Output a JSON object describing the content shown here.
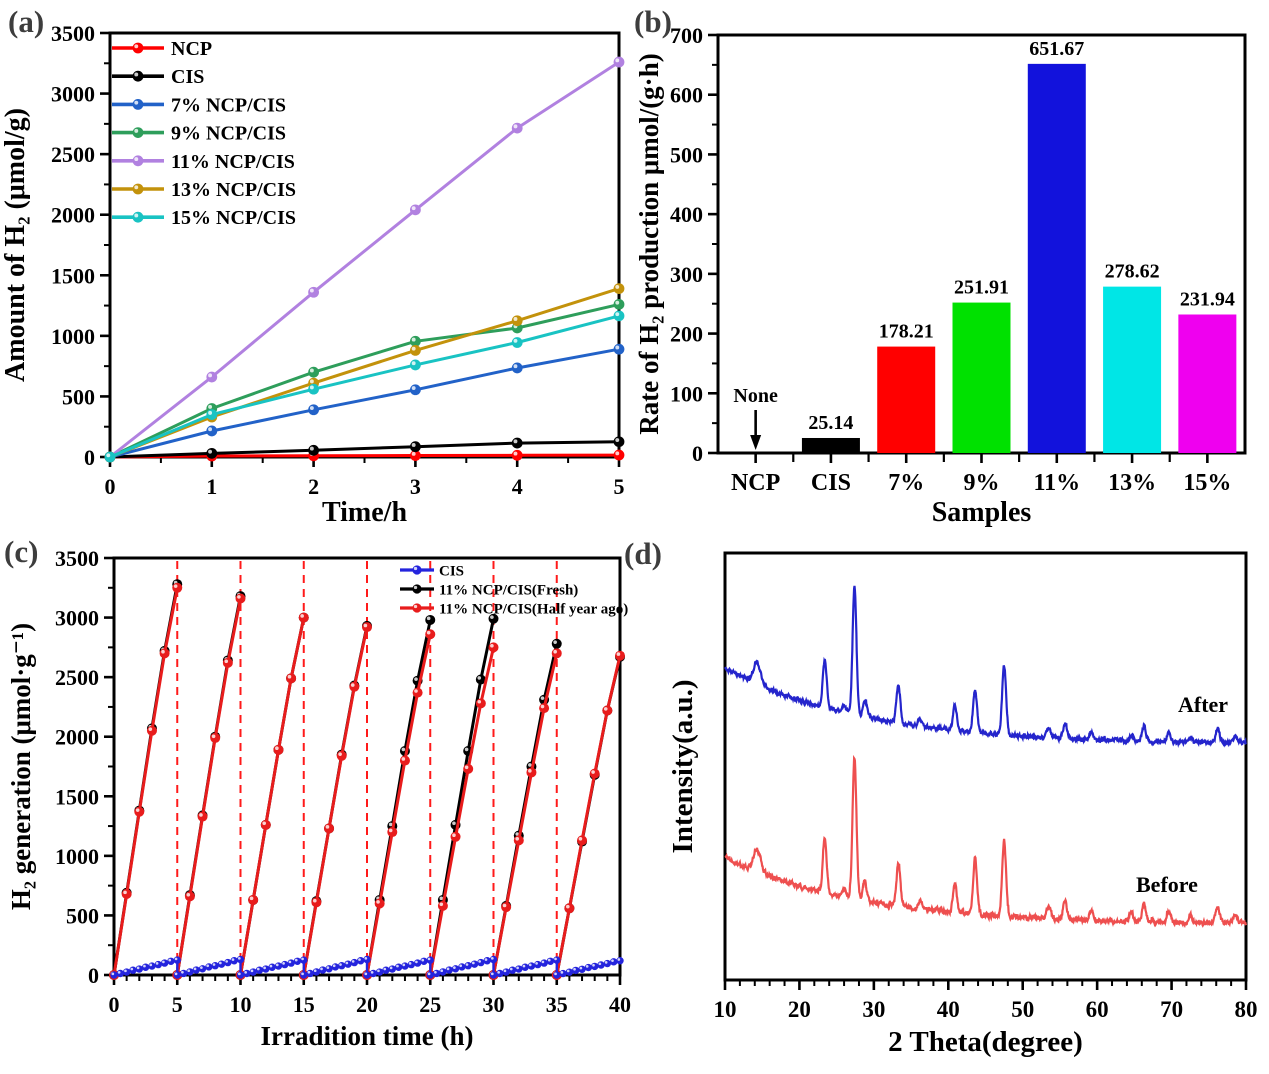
{
  "panels": {
    "a": "(a)",
    "b": "(b)",
    "c": "(c)",
    "d": "(d)"
  },
  "chart_data": [
    {
      "panel": "a",
      "type": "line",
      "xlabel": "Time/h",
      "ylabel": "Amount of H₂ (μmol/g)",
      "xlim": [
        0,
        5
      ],
      "ylim": [
        0,
        3500
      ],
      "xticks": [
        0,
        1,
        2,
        3,
        4,
        5
      ],
      "yticks": [
        0,
        500,
        1000,
        1500,
        2000,
        2500,
        3000,
        3500
      ],
      "x_minor": 0.5,
      "y_minor": 250,
      "grid": false,
      "legend_position": "top-left",
      "series": [
        {
          "name": "NCP",
          "color": "#ff0000",
          "x": [
            0,
            1,
            2,
            3,
            4,
            5
          ],
          "y": [
            0,
            8,
            10,
            12,
            14,
            16
          ]
        },
        {
          "name": "CIS",
          "color": "#000000",
          "x": [
            0,
            1,
            2,
            3,
            4,
            5
          ],
          "y": [
            0,
            30,
            55,
            85,
            115,
            126
          ]
        },
        {
          "name": "7% NCP/CIS",
          "color": "#2262c8",
          "x": [
            0,
            1,
            2,
            3,
            4,
            5
          ],
          "y": [
            0,
            215,
            390,
            555,
            735,
            890
          ]
        },
        {
          "name": "9% NCP/CIS",
          "color": "#2e9e5b",
          "x": [
            0,
            1,
            2,
            3,
            4,
            5
          ],
          "y": [
            0,
            400,
            700,
            955,
            1065,
            1260
          ]
        },
        {
          "name": "11% NCP/CIS",
          "color": "#b181e0",
          "x": [
            0,
            1,
            2,
            3,
            4,
            5
          ],
          "y": [
            0,
            660,
            1360,
            2040,
            2715,
            3260
          ]
        },
        {
          "name": "13% NCP/CIS",
          "color": "#c3920b",
          "x": [
            0,
            1,
            2,
            3,
            4,
            5
          ],
          "y": [
            0,
            330,
            610,
            880,
            1125,
            1390
          ]
        },
        {
          "name": "15% NCP/CIS",
          "color": "#19c3c3",
          "x": [
            0,
            1,
            2,
            3,
            4,
            5
          ],
          "y": [
            0,
            350,
            560,
            760,
            945,
            1165
          ]
        }
      ]
    },
    {
      "panel": "b",
      "type": "bar",
      "xlabel": "Samples",
      "ylabel": "Rate of H₂ production μmol/(g·h)",
      "ylim": [
        0,
        700
      ],
      "yticks": [
        0,
        100,
        200,
        300,
        400,
        500,
        600,
        700
      ],
      "y_minor": 50,
      "categories": [
        "NCP",
        "CIS",
        "7%",
        "9%",
        "11%",
        "13%",
        "15%"
      ],
      "values": [
        0,
        25.14,
        178.21,
        251.91,
        651.67,
        278.62,
        231.94
      ],
      "bar_labels": [
        "",
        "25.14",
        "178.21",
        "251.91",
        "651.67",
        "278.62",
        "231.94"
      ],
      "colors": [
        "#000000",
        "#000000",
        "#ff0000",
        "#00e100",
        "#1212dc",
        "#00e6e6",
        "#ef00ef"
      ],
      "annotation": {
        "text": "None",
        "category": "NCP"
      }
    },
    {
      "panel": "c",
      "type": "line-cycles",
      "xlabel": "Irradition time (h)",
      "ylabel": "H₂ generation (μmol·g⁻¹)",
      "xlim": [
        0,
        40
      ],
      "ylim": [
        0,
        3500
      ],
      "xticks": [
        0,
        5,
        10,
        15,
        20,
        25,
        30,
        35,
        40
      ],
      "yticks": [
        0,
        500,
        1000,
        1500,
        2000,
        2500,
        3000,
        3500
      ],
      "x_minor": 1,
      "y_minor": 250,
      "cycle_length": 5,
      "dashed_vlines": {
        "x": [
          5,
          10,
          15,
          20,
          25,
          30,
          35
        ],
        "color": "#ff1a1a"
      },
      "legend_position": "top-middle",
      "series": [
        {
          "name": "CIS",
          "color": "#2424dd",
          "style": "sawtooth",
          "cycle_max": [
            125,
            130,
            125,
            130,
            125,
            130,
            125,
            120
          ],
          "profile": [
            0,
            0.1,
            0.2,
            0.32,
            0.4,
            0.52,
            0.6,
            0.7,
            0.8,
            0.92,
            1.0
          ],
          "point_step_h": 0.5
        },
        {
          "name": "11% NCP/CIS(Fresh)",
          "color": "#000000",
          "style": "cycles",
          "cycles": [
            [
              0,
              690,
              1380,
              2070,
              2720,
              3280
            ],
            [
              0,
              670,
              1340,
              2000,
              2640,
              3180
            ],
            [
              0,
              630,
              1260,
              1890,
              2490,
              3000
            ],
            [
              0,
              620,
              1230,
              1850,
              2430,
              2930
            ],
            [
              0,
              630,
              1250,
              1880,
              2470,
              2980
            ],
            [
              0,
              630,
              1260,
              1880,
              2480,
              2990
            ],
            [
              0,
              580,
              1170,
              1750,
              2310,
              2780
            ],
            [
              0,
              560,
              1120,
              1680,
              2220,
              2670
            ]
          ]
        },
        {
          "name": "11% NCP/CIS(Half year ago)",
          "color": "#e81c1c",
          "style": "cycles",
          "cycles": [
            [
              0,
              680,
              1370,
              2050,
              2700,
              3250
            ],
            [
              0,
              660,
              1330,
              1990,
              2620,
              3160
            ],
            [
              0,
              630,
              1260,
              1890,
              2490,
              3000
            ],
            [
              0,
              610,
              1230,
              1840,
              2420,
              2920
            ],
            [
              0,
              600,
              1200,
              1800,
              2370,
              2860
            ],
            [
              0,
              580,
              1160,
              1730,
              2280,
              2750
            ],
            [
              0,
              570,
              1130,
              1700,
              2240,
              2700
            ],
            [
              0,
              560,
              1130,
              1690,
              2220,
              2680
            ]
          ]
        }
      ]
    },
    {
      "panel": "d",
      "type": "xrd",
      "xlabel": "2 Theta(degree)",
      "ylabel": "Intensity(a.u.)",
      "xlim": [
        10,
        80
      ],
      "xticks": [
        10,
        20,
        30,
        40,
        50,
        60,
        70,
        80
      ],
      "x_minor": 2,
      "series": [
        {
          "name": "After",
          "color": "#2525cc",
          "label_color": "#2525cc",
          "peaks": [
            [
              14.3,
              0.17,
              0.5
            ],
            [
              23.4,
              0.38
            ],
            [
              26.0,
              0.06
            ],
            [
              27.4,
              1.0
            ],
            [
              28.8,
              0.14
            ],
            [
              33.3,
              0.3
            ],
            [
              36.2,
              0.05
            ],
            [
              40.9,
              0.2
            ],
            [
              43.6,
              0.33
            ],
            [
              47.5,
              0.54
            ],
            [
              53.5,
              0.08
            ],
            [
              55.7,
              0.12
            ],
            [
              59.2,
              0.06
            ],
            [
              64.6,
              0.05
            ],
            [
              66.3,
              0.12
            ],
            [
              69.6,
              0.07
            ],
            [
              72.5,
              0.04
            ],
            [
              76.2,
              0.11
            ],
            [
              78.6,
              0.05
            ]
          ]
        },
        {
          "name": "Before",
          "color": "#ee4f4f",
          "label_color": "#ff0000",
          "peaks": [
            [
              14.3,
              0.16,
              0.5
            ],
            [
              23.4,
              0.37
            ],
            [
              26.0,
              0.06
            ],
            [
              27.4,
              1.0
            ],
            [
              28.8,
              0.14
            ],
            [
              33.3,
              0.31
            ],
            [
              36.2,
              0.05
            ],
            [
              40.9,
              0.2
            ],
            [
              43.6,
              0.4
            ],
            [
              47.5,
              0.54
            ],
            [
              53.5,
              0.09
            ],
            [
              55.7,
              0.13
            ],
            [
              59.2,
              0.07
            ],
            [
              64.6,
              0.06
            ],
            [
              66.3,
              0.13
            ],
            [
              69.6,
              0.08
            ],
            [
              72.5,
              0.05
            ],
            [
              76.2,
              0.12
            ],
            [
              78.6,
              0.06
            ]
          ]
        }
      ]
    }
  ]
}
